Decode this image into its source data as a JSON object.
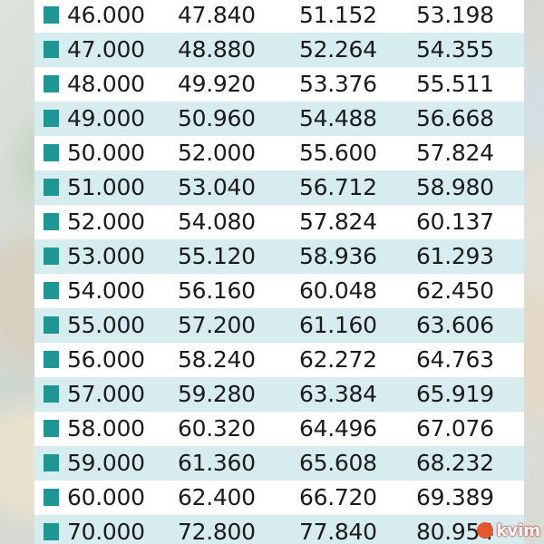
{
  "table": {
    "rows": [
      [
        "46.000",
        "47.840",
        "51.152",
        "53.198"
      ],
      [
        "47.000",
        "48.880",
        "52.264",
        "54.355"
      ],
      [
        "48.000",
        "49.920",
        "53.376",
        "55.511"
      ],
      [
        "49.000",
        "50.960",
        "54.488",
        "56.668"
      ],
      [
        "50.000",
        "52.000",
        "55.600",
        "57.824"
      ],
      [
        "51.000",
        "53.040",
        "56.712",
        "58.980"
      ],
      [
        "52.000",
        "54.080",
        "57.824",
        "60.137"
      ],
      [
        "53.000",
        "55.120",
        "58.936",
        "61.293"
      ],
      [
        "54.000",
        "56.160",
        "60.048",
        "62.450"
      ],
      [
        "55.000",
        "57.200",
        "61.160",
        "63.606"
      ],
      [
        "56.000",
        "58.240",
        "62.272",
        "64.763"
      ],
      [
        "57.000",
        "59.280",
        "63.384",
        "65.919"
      ],
      [
        "58.000",
        "60.320",
        "64.496",
        "67.076"
      ],
      [
        "59.000",
        "61.360",
        "65.608",
        "68.232"
      ],
      [
        "60.000",
        "62.400",
        "66.720",
        "69.389"
      ],
      [
        "70.000",
        "72.800",
        "77.840",
        "80.954"
      ]
    ]
  },
  "colors": {
    "bullet": "#1e9694",
    "row_shade": "#d7ecef"
  },
  "watermark": {
    "text": "kvim"
  }
}
